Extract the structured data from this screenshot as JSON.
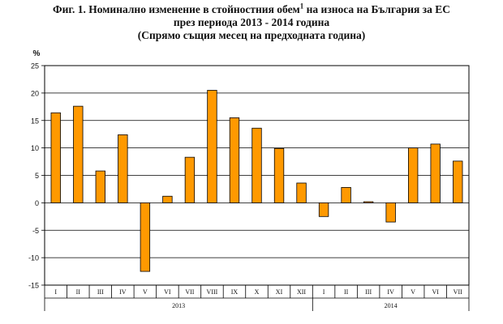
{
  "title": {
    "line1_prefix": "Фиг. 1. Номинално изменение в стойностния обем",
    "footnote_mark": "1",
    "line1_suffix": " на износа на България за ЕС",
    "line2": "през периода 2013 - 2014 година",
    "line3": "(Спрямо същия месец на предходната година)"
  },
  "chart_data": {
    "type": "bar",
    "ylabel": "%",
    "ylim": [
      -15,
      25
    ],
    "yticks": [
      25,
      20,
      15,
      10,
      5,
      0,
      -5,
      -10,
      -15
    ],
    "grid": true,
    "bar_color": "#FF9900",
    "categories": [
      "I",
      "II",
      "III",
      "IV",
      "V",
      "VI",
      "VII",
      "VIII",
      "IX",
      "X",
      "XI",
      "XII",
      "I",
      "II",
      "III",
      "IV",
      "V",
      "VI",
      "VII"
    ],
    "values": [
      16.4,
      17.6,
      5.8,
      12.4,
      -12.5,
      1.2,
      8.3,
      20.5,
      15.5,
      13.6,
      9.9,
      3.6,
      -2.5,
      2.8,
      0.2,
      -3.5,
      10.0,
      10.7,
      7.6
    ],
    "groups": [
      {
        "label": "2013",
        "count": 12
      },
      {
        "label": "2014",
        "count": 7
      }
    ]
  }
}
